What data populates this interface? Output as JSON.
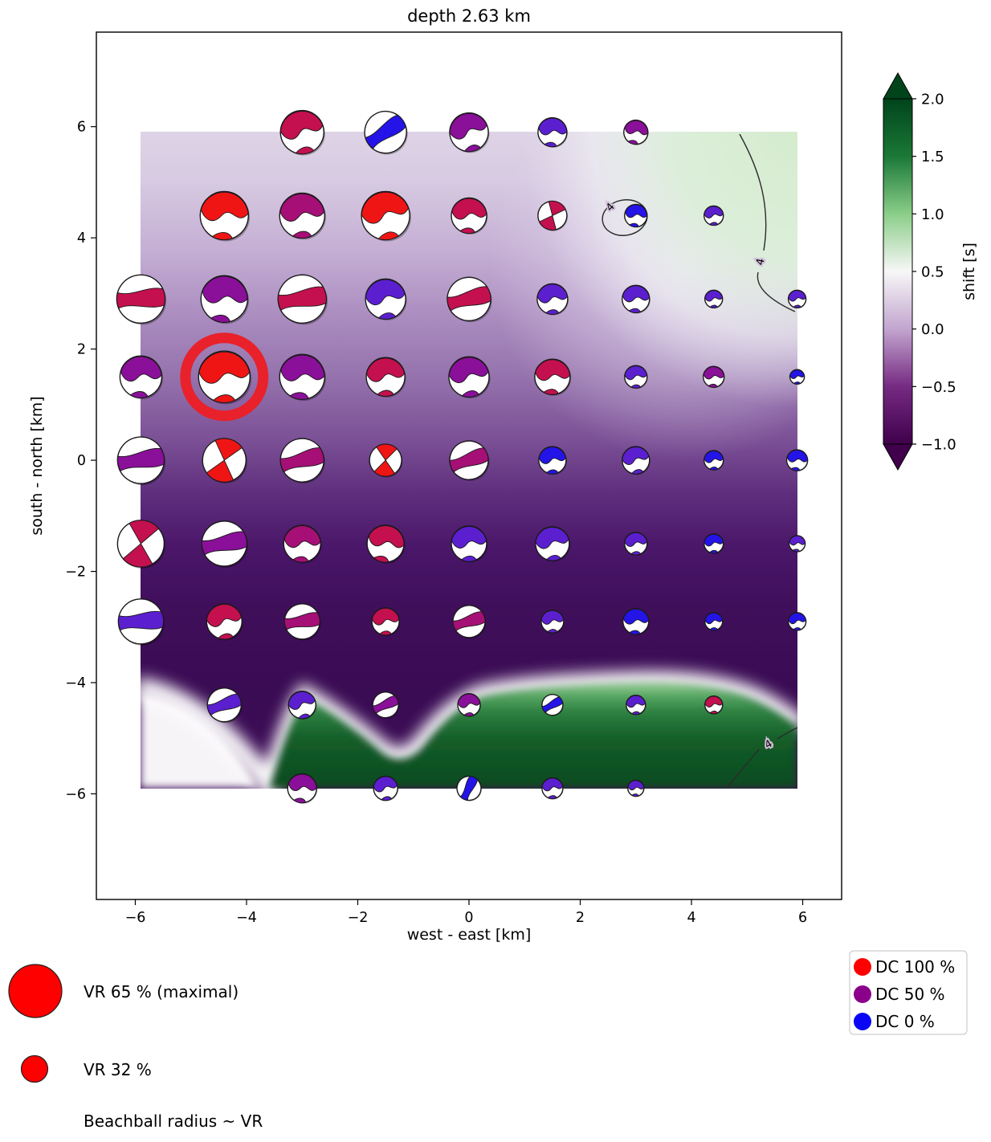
{
  "chart_data": {
    "type": "scatter",
    "subtype": "moment-tensor-beachball-grid",
    "title": "depth  2.63 km",
    "xlabel": "west - east [km]",
    "ylabel": "south - north [km]",
    "xticks": [
      -6,
      -4,
      -2,
      0,
      2,
      4,
      6
    ],
    "yticks": [
      6,
      4,
      2,
      0,
      -2,
      -4,
      -6
    ],
    "xlim": [
      -6.7,
      6.7
    ],
    "ylim": [
      -7.9,
      7.7
    ],
    "grid": false,
    "field_extent": {
      "x": [
        -5.9,
        5.9
      ],
      "y": [
        -5.9,
        5.9
      ]
    },
    "colorbar": {
      "label": "shift [s]",
      "ticks": [
        2.0,
        1.5,
        1.0,
        0.5,
        0.0,
        -0.5,
        -1.0
      ],
      "vmin": -1.0,
      "vmax": 2.0,
      "colormap": "PRGn",
      "extend": "both",
      "stops_top_to_bottom": [
        "#00441b",
        "#1b7837",
        "#8ace88",
        "#f7f7f7",
        "#c2a5cf",
        "#762a83",
        "#40004b"
      ]
    },
    "contour_label": "4",
    "dc_color_map": {
      "red": "#f01515",
      "crimson": "#c4104f",
      "magenta": "#a60f76",
      "purple": "#8a0f99",
      "violet": "#5b1fd0",
      "blue": "#2414e8"
    },
    "beachball_fields": [
      "x_km",
      "y_km",
      "radius_px",
      "dc_color",
      "pattern",
      "rotation_deg"
    ],
    "beachballs": [
      [
        -3.0,
        5.9,
        27,
        "crimson",
        "lobes",
        -8
      ],
      [
        -1.5,
        5.9,
        26,
        "blue",
        "band",
        55
      ],
      [
        0.0,
        5.9,
        24,
        "purple",
        "lobes",
        -12
      ],
      [
        1.5,
        5.9,
        18,
        "violet",
        "lobes",
        8
      ],
      [
        3.0,
        5.9,
        15,
        "purple",
        "lobes",
        15
      ],
      [
        -4.4,
        4.4,
        30,
        "red",
        "lobes",
        5
      ],
      [
        -3.0,
        4.4,
        28,
        "magenta",
        "lobes",
        0
      ],
      [
        -1.5,
        4.4,
        30,
        "red",
        "lobes",
        -8
      ],
      [
        0.0,
        4.4,
        22,
        "crimson",
        "lobes",
        5
      ],
      [
        1.5,
        4.4,
        18,
        "crimson",
        "quad",
        25
      ],
      [
        3.0,
        4.4,
        14,
        "blue",
        "lobes",
        10
      ],
      [
        4.4,
        4.4,
        12,
        "violet",
        "lobes",
        0
      ],
      [
        -5.9,
        2.9,
        30,
        "crimson",
        "band",
        85
      ],
      [
        -4.4,
        2.9,
        29,
        "purple",
        "lobes",
        10
      ],
      [
        -3.0,
        2.9,
        30,
        "crimson",
        "band",
        80
      ],
      [
        -1.5,
        2.9,
        25,
        "violet",
        "lobes",
        -5
      ],
      [
        0.0,
        2.9,
        27,
        "crimson",
        "band",
        75
      ],
      [
        1.5,
        2.9,
        19,
        "violet",
        "lobes",
        0
      ],
      [
        3.0,
        2.9,
        17,
        "violet",
        "lobes",
        5
      ],
      [
        4.4,
        2.9,
        11,
        "violet",
        "lobes",
        0
      ],
      [
        5.9,
        2.9,
        11,
        "violet",
        "lobes",
        0
      ],
      [
        -5.9,
        1.5,
        26,
        "purple",
        "lobes",
        5
      ],
      [
        -4.4,
        1.5,
        32,
        "red",
        "lobes",
        0
      ],
      [
        -3.0,
        1.5,
        28,
        "purple",
        "lobes",
        8
      ],
      [
        -1.5,
        1.5,
        24,
        "crimson",
        "lobes",
        0
      ],
      [
        0.0,
        1.5,
        25,
        "purple",
        "lobes",
        -5
      ],
      [
        1.5,
        1.5,
        22,
        "crimson",
        "lobes",
        5
      ],
      [
        3.0,
        1.5,
        14,
        "violet",
        "lobes",
        0
      ],
      [
        4.4,
        1.5,
        13,
        "purple",
        "lobes",
        5
      ],
      [
        5.9,
        1.5,
        9,
        "blue",
        "lobes",
        0
      ],
      [
        -5.9,
        0.0,
        29,
        "purple",
        "band",
        80
      ],
      [
        -4.4,
        0.0,
        27,
        "red",
        "quad",
        15
      ],
      [
        -3.0,
        0.0,
        27,
        "magenta",
        "band",
        75
      ],
      [
        -1.5,
        0.0,
        20,
        "red",
        "quad",
        5
      ],
      [
        0.0,
        0.0,
        24,
        "magenta",
        "band",
        70
      ],
      [
        1.5,
        0.0,
        17,
        "blue",
        "lobes",
        0
      ],
      [
        3.0,
        0.0,
        17,
        "violet",
        "lobes",
        -8
      ],
      [
        4.4,
        0.0,
        12,
        "blue",
        "lobes",
        0
      ],
      [
        5.9,
        0.0,
        13,
        "blue",
        "lobes",
        10
      ],
      [
        -5.9,
        -1.5,
        29,
        "crimson",
        "quad",
        10
      ],
      [
        -4.4,
        -1.5,
        28,
        "purple",
        "band",
        78
      ],
      [
        -3.0,
        -1.5,
        23,
        "magenta",
        "lobes",
        5
      ],
      [
        -1.5,
        -1.5,
        23,
        "crimson",
        "lobes",
        15
      ],
      [
        0.0,
        -1.5,
        22,
        "violet",
        "lobes",
        0
      ],
      [
        1.5,
        -1.5,
        21,
        "violet",
        "lobes",
        -5
      ],
      [
        3.0,
        -1.5,
        14,
        "violet",
        "lobes",
        0
      ],
      [
        4.4,
        -1.5,
        12,
        "blue",
        "lobes",
        0
      ],
      [
        5.9,
        -1.5,
        10,
        "violet",
        "lobes",
        8
      ],
      [
        -5.9,
        -2.9,
        28,
        "violet",
        "band",
        85
      ],
      [
        -4.4,
        -2.9,
        22,
        "crimson",
        "lobes",
        -5
      ],
      [
        -3.0,
        -2.9,
        22,
        "magenta",
        "band",
        80
      ],
      [
        -1.5,
        -2.9,
        17,
        "crimson",
        "lobes",
        0
      ],
      [
        0.0,
        -2.9,
        20,
        "magenta",
        "band",
        72
      ],
      [
        1.5,
        -2.9,
        14,
        "violet",
        "lobes",
        0
      ],
      [
        3.0,
        -2.9,
        16,
        "blue",
        "lobes",
        5
      ],
      [
        4.4,
        -2.9,
        11,
        "blue",
        "lobes",
        0
      ],
      [
        5.9,
        -2.9,
        11,
        "blue",
        "lobes",
        0
      ],
      [
        -4.4,
        -4.4,
        21,
        "violet",
        "band",
        70
      ],
      [
        -3.0,
        -4.4,
        17,
        "violet",
        "lobes",
        -10
      ],
      [
        -1.5,
        -4.4,
        16,
        "purple",
        "band",
        65
      ],
      [
        0.0,
        -4.4,
        14,
        "purple",
        "lobes",
        0
      ],
      [
        1.5,
        -4.4,
        13,
        "blue",
        "band",
        60
      ],
      [
        3.0,
        -4.4,
        12,
        "violet",
        "lobes",
        0
      ],
      [
        4.4,
        -4.4,
        11,
        "crimson",
        "lobes",
        0
      ],
      [
        -3.0,
        -5.9,
        18,
        "purple",
        "lobes",
        10
      ],
      [
        -1.5,
        -5.9,
        15,
        "violet",
        "lobes",
        -5
      ],
      [
        0.0,
        -5.9,
        15,
        "blue",
        "band",
        25
      ],
      [
        1.5,
        -5.9,
        13,
        "violet",
        "lobes",
        0
      ],
      [
        3.0,
        -5.9,
        10,
        "violet",
        "lobes",
        5
      ]
    ],
    "highlight": {
      "x_km": -4.4,
      "y_km": 1.5,
      "ring_color": "#e8212b"
    },
    "legend_vr": {
      "max_label": "VR 65 % (maximal)",
      "second_label": "VR 32 %",
      "note": "Beachball radius ~ VR",
      "symbol_color": "#ff0000"
    },
    "legend_dc": [
      {
        "label": "DC 100 %",
        "color": "#ff0000"
      },
      {
        "label": "DC 50 %",
        "color": "#8b008b"
      },
      {
        "label": "DC 0 %",
        "color": "#0a06f5"
      }
    ]
  }
}
